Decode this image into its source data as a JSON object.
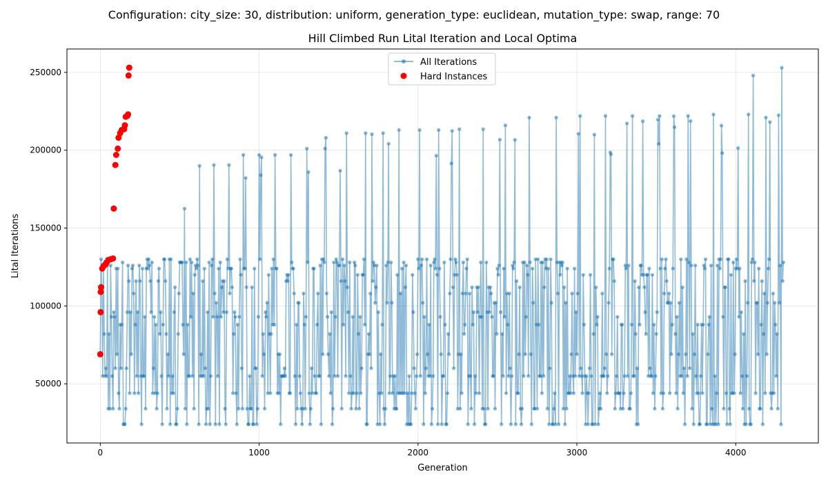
{
  "page": {
    "suptitle": "Configuration: city_size: 30, distribution: uniform, generation_type: euclidean, mutation_type: swap, range: 70"
  },
  "chart_data": {
    "type": "line",
    "title": "Hill Climbed Run Lital Iteration and Local Optima",
    "xlabel": "Generation",
    "ylabel": "Lital Iterations",
    "xlim": [
      -210,
      4520
    ],
    "ylim": [
      12000,
      265000
    ],
    "x_ticks": [
      0,
      1000,
      2000,
      3000,
      4000
    ],
    "y_ticks": [
      50000,
      100000,
      150000,
      200000,
      250000
    ],
    "grid": true,
    "legend_position": "upper center",
    "legend": [
      {
        "label": "All Iterations",
        "color": "#1f77b4"
      },
      {
        "label": "Hard Instances",
        "color": "#ff0000"
      }
    ],
    "series": [
      {
        "name": "All Iterations",
        "color": "#1f77b4",
        "style": "line+markers",
        "generation_range": [
          0,
          4300
        ],
        "cycle_length": 100,
        "value_levels": [
          24000,
          34000,
          44000,
          55000,
          60000,
          69000,
          82000,
          88000,
          93000,
          96000,
          102000,
          108000,
          112000,
          116000,
          120000,
          124000,
          126000,
          128000,
          130000
        ],
        "peaks": [
          {
            "x": 530,
            "y": 162500
          },
          {
            "x": 625,
            "y": 190000
          },
          {
            "x": 715,
            "y": 190500
          },
          {
            "x": 810,
            "y": 190500
          },
          {
            "x": 900,
            "y": 197000
          },
          {
            "x": 1000,
            "y": 197000
          },
          {
            "x": 1100,
            "y": 197000
          },
          {
            "x": 1200,
            "y": 197000
          },
          {
            "x": 1300,
            "y": 201000
          },
          {
            "x": 1420,
            "y": 208000
          },
          {
            "x": 1550,
            "y": 211000
          },
          {
            "x": 1670,
            "y": 211000
          },
          {
            "x": 1780,
            "y": 211000
          },
          {
            "x": 1880,
            "y": 213000
          },
          {
            "x": 2010,
            "y": 213000
          },
          {
            "x": 2130,
            "y": 213000
          },
          {
            "x": 2260,
            "y": 213500
          },
          {
            "x": 2410,
            "y": 213500
          },
          {
            "x": 2550,
            "y": 216000
          },
          {
            "x": 2700,
            "y": 221000
          },
          {
            "x": 2870,
            "y": 221000
          },
          {
            "x": 3020,
            "y": 222000
          },
          {
            "x": 3180,
            "y": 222000
          },
          {
            "x": 3350,
            "y": 222000
          },
          {
            "x": 3520,
            "y": 222000
          },
          {
            "x": 3700,
            "y": 222000
          },
          {
            "x": 3860,
            "y": 223000
          },
          {
            "x": 4080,
            "y": 223000
          },
          {
            "x": 4110,
            "y": 248000
          },
          {
            "x": 4190,
            "y": 221000
          },
          {
            "x": 4270,
            "y": 222500
          },
          {
            "x": 4290,
            "y": 253000
          }
        ]
      },
      {
        "name": "Hard Instances",
        "color": "#ff0000",
        "style": "scatter",
        "points": [
          {
            "x": 0,
            "y": 69000
          },
          {
            "x": 2,
            "y": 96000
          },
          {
            "x": 3,
            "y": 109000
          },
          {
            "x": 5,
            "y": 112000
          },
          {
            "x": 12,
            "y": 124000
          },
          {
            "x": 20,
            "y": 125500
          },
          {
            "x": 30,
            "y": 126500
          },
          {
            "x": 40,
            "y": 128000
          },
          {
            "x": 50,
            "y": 129500
          },
          {
            "x": 65,
            "y": 130000
          },
          {
            "x": 80,
            "y": 130500
          },
          {
            "x": 85,
            "y": 162500
          },
          {
            "x": 95,
            "y": 190500
          },
          {
            "x": 100,
            "y": 197000
          },
          {
            "x": 110,
            "y": 201000
          },
          {
            "x": 115,
            "y": 208000
          },
          {
            "x": 125,
            "y": 211000
          },
          {
            "x": 135,
            "y": 213000
          },
          {
            "x": 150,
            "y": 213500
          },
          {
            "x": 155,
            "y": 216000
          },
          {
            "x": 160,
            "y": 221500
          },
          {
            "x": 170,
            "y": 222000
          },
          {
            "x": 175,
            "y": 223000
          },
          {
            "x": 178,
            "y": 248000
          },
          {
            "x": 182,
            "y": 253000
          }
        ]
      }
    ]
  }
}
